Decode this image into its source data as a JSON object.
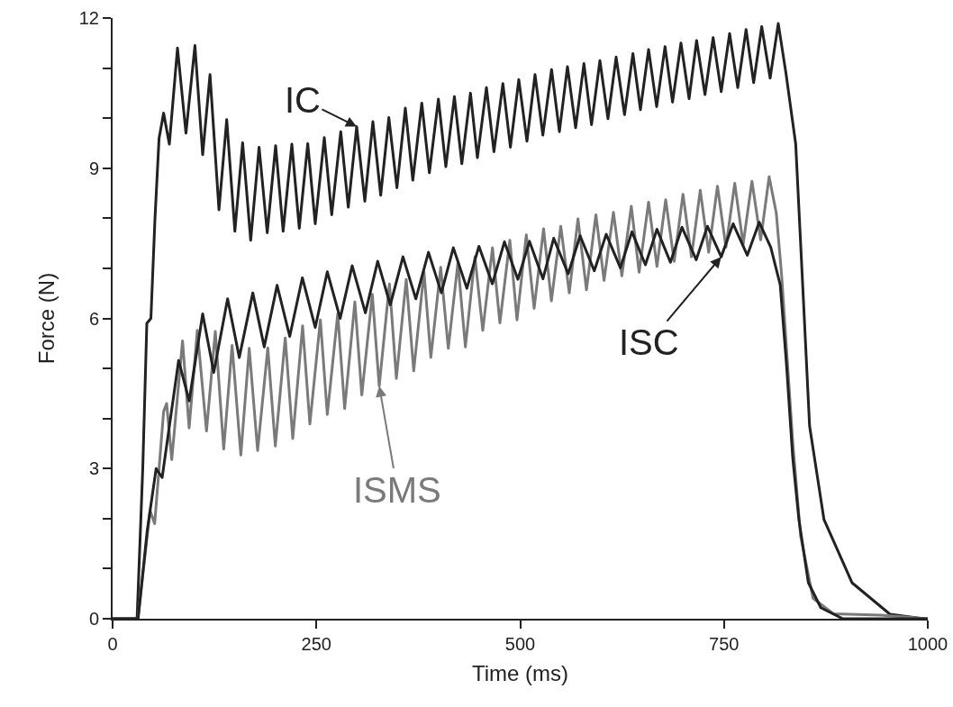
{
  "chart_data": {
    "type": "line",
    "xlabel": "Time (ms)",
    "ylabel": "Force (N)",
    "xlim": [
      0,
      1000
    ],
    "ylim": [
      0,
      12
    ],
    "xticks": [
      0,
      250,
      500,
      750,
      1000
    ],
    "yticks": [
      0,
      {
        "value": 1,
        "label": null
      },
      {
        "value": 2,
        "label": null
      },
      3,
      {
        "value": 4,
        "label": null
      },
      {
        "value": 5,
        "label": null
      },
      6,
      {
        "value": 7,
        "label": null
      },
      {
        "value": 8,
        "label": null
      },
      9,
      {
        "value": 10,
        "label": null
      },
      {
        "value": 11,
        "label": null
      },
      12
    ],
    "series": [
      {
        "color": "#222222",
        "x": [
          0,
          30,
          37,
          42,
          47,
          52,
          57,
          62.6,
          69.6,
          79.6,
          90,
          101,
          110.5,
          119.5,
          130.5,
          140,
          150,
          159.5,
          169.4,
          179.7,
          189.7,
          200,
          209.2,
          219.9,
          229,
          239.4,
          248.6,
          259.7,
          268.8,
          279.9,
          289.1,
          299.4,
          309.4,
          319.3,
          328.9,
          338.9,
          348.8,
          359.1,
          368.3,
          379.3,
          388.6,
          399.7,
          408.8,
          419.3,
          428.4,
          439,
          447.5,
          458.6,
          467.8,
          478.8,
          488,
          498.3,
          508.3,
          518.2,
          527.8,
          538.5,
          548.1,
          558,
          568,
          578.2,
          587.5,
          597.8,
          607.7,
          617.7,
          628,
          638.3,
          647.5,
          657.5,
          667.4,
          677.7,
          686.9,
          697.2,
          707.2,
          716.4,
          726.7,
          736.7,
          746.6,
          756.9,
          766.9,
          777.1,
          786.4,
          796.3,
          806.6,
          816.6,
          826,
          838,
          847.5,
          855,
          872.7,
          907,
          953.6,
          995
        ],
        "values": [
          0,
          0,
          3,
          5.9,
          6,
          8,
          9.6,
          10.1,
          9.48,
          11.4,
          9.7,
          11.45,
          9.27,
          10.87,
          8.17,
          9.97,
          7.74,
          9.51,
          7.56,
          9.42,
          7.71,
          9.45,
          7.74,
          9.48,
          7.8,
          9.49,
          7.89,
          9.61,
          8.07,
          9.73,
          8.22,
          9.83,
          8.34,
          9.93,
          8.46,
          10.01,
          8.61,
          10.2,
          8.76,
          10.3,
          8.91,
          10.38,
          9.03,
          10.43,
          9.09,
          10.5,
          9.21,
          10.61,
          9.33,
          10.69,
          9.42,
          10.77,
          9.54,
          10.87,
          9.66,
          10.97,
          9.73,
          11.03,
          9.81,
          11.09,
          9.87,
          11.15,
          9.99,
          11.22,
          10.07,
          11.29,
          10.17,
          11.37,
          10.23,
          11.43,
          10.32,
          11.5,
          10.39,
          11.55,
          10.47,
          11.61,
          10.53,
          11.69,
          10.61,
          11.77,
          10.71,
          11.83,
          10.8,
          11.89,
          10.9,
          9.48,
          6.35,
          3.85,
          1.98,
          0.72,
          0.09,
          0
        ]
      },
      {
        "color": "#7a7a7a",
        "x": [
          0,
          31,
          46,
          51.6,
          62.6,
          66.3,
          72.6,
          85.8,
          93.9,
          103.9,
          115.2,
          126,
          136.3,
          146.6,
          157.3,
          167.6,
          177.9,
          190.4,
          199.6,
          211.8,
          221,
          233.1,
          242,
          254.9,
          263.4,
          276.2,
          284.7,
          297.2,
          305.7,
          318.6,
          327.1,
          339.6,
          348.1,
          360.2,
          369.4,
          382,
          390.4,
          402.5,
          411.8,
          423.6,
          432.8,
          444.5,
          454.1,
          466,
          475.1,
          487.3,
          496.1,
          507.5,
          517.1,
          528.7,
          538.3,
          549.8,
          560.2,
          570.9,
          581.3,
          592.9,
          602.9,
          614.4,
          624.7,
          636.3,
          645.9,
          657.5,
          667.8,
          678.5,
          688.9,
          699.7,
          710.1,
          720.9,
          731.2,
          742,
          752.4,
          763.2,
          773.5,
          784.3,
          795,
          805.4,
          814.2,
          820.7,
          826.6,
          834.3,
          843.9,
          859.2,
          884.2,
          941.9,
          1000
        ],
        "values": [
          0,
          0,
          2.16,
          1.9,
          4.14,
          4.3,
          3.18,
          5.55,
          3.81,
          5.76,
          3.75,
          5.74,
          3.39,
          5.46,
          3.27,
          5.4,
          3.36,
          5.41,
          3.45,
          5.61,
          3.6,
          5.85,
          3.89,
          5.97,
          4.08,
          6.09,
          4.2,
          6.33,
          4.47,
          6.48,
          4.65,
          6.69,
          4.8,
          6.78,
          4.95,
          6.93,
          5.22,
          7.02,
          5.4,
          7.11,
          5.43,
          7.23,
          5.76,
          7.41,
          5.91,
          7.56,
          5.97,
          7.67,
          6.2,
          7.79,
          6.35,
          7.84,
          6.51,
          7.99,
          6.57,
          8.07,
          6.76,
          8.12,
          6.85,
          8.24,
          6.92,
          8.32,
          7.04,
          8.37,
          7.14,
          8.48,
          7.23,
          8.56,
          7.32,
          8.64,
          7.42,
          8.7,
          7.48,
          8.74,
          7.57,
          8.83,
          8.1,
          6.86,
          5.42,
          3.54,
          1.66,
          0.41,
          0.1,
          0.07,
          0
        ]
      },
      {
        "color": "#222222",
        "x": [
          0,
          31.3,
          42.4,
          53.4,
          60.8,
          81,
          93.9,
          110.5,
          124.1,
          141.1,
          155.4,
          172,
          186,
          201.8,
          217.3,
          232.8,
          248.6,
          263.4,
          279.2,
          293.9,
          310.1,
          325.2,
          340.7,
          356.2,
          372,
          387.5,
          403.3,
          418,
          434.6,
          449.4,
          465.9,
          480.7,
          497.2,
          511.4,
          527.9,
          541.1,
          558.9,
          573.5,
          590.9,
          605.5,
          622.9,
          637.1,
          653.6,
          667.8,
          684.3,
          698.5,
          715.9,
          729.7,
          746.6,
          761.2,
          778.6,
          793.2,
          807.4,
          819,
          826.6,
          834.3,
          842,
          853.5,
          868.8,
          895.8,
          1000
        ],
        "values": [
          0,
          0,
          1.75,
          3,
          2.82,
          5.16,
          4.35,
          6.09,
          4.92,
          6.39,
          5.22,
          6.51,
          5.43,
          6.66,
          5.64,
          6.81,
          5.82,
          6.93,
          6,
          7.05,
          6.11,
          7.14,
          6.27,
          7.23,
          6.39,
          7.32,
          6.51,
          7.41,
          6.6,
          7.44,
          6.69,
          7.53,
          6.78,
          7.54,
          6.79,
          7.6,
          6.89,
          7.65,
          6.95,
          7.68,
          7.01,
          7.73,
          7.07,
          7.78,
          7.12,
          7.82,
          7.17,
          7.84,
          7.23,
          7.89,
          7.26,
          7.92,
          7.42,
          6.67,
          5.1,
          3.22,
          1.97,
          0.72,
          0.22,
          0,
          0
        ]
      }
    ],
    "annotations": [
      {
        "text": "IC",
        "x": 299.4,
        "y": 9.83
      },
      {
        "text": "ISMS",
        "x": 327.1,
        "y": 4.65
      },
      {
        "text": "ISC",
        "x": 746.6,
        "y": 7.23
      }
    ]
  }
}
